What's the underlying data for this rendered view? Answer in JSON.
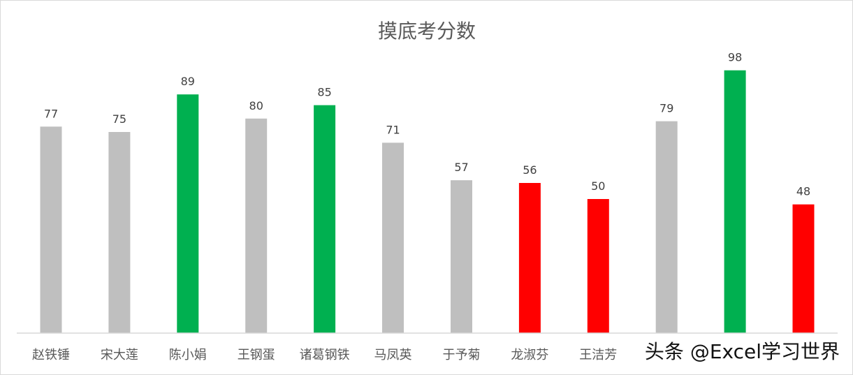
{
  "chart_data": {
    "type": "bar",
    "title": "摸底考分数",
    "categories": [
      "赵铁锤",
      "宋大莲",
      "陈小娟",
      "王钢蛋",
      "诸葛钢铁",
      "马凤英",
      "于予菊",
      "龙淑芬",
      "王洁芳",
      "",
      "",
      ""
    ],
    "values": [
      77,
      75,
      89,
      80,
      85,
      71,
      57,
      56,
      50,
      79,
      98,
      48
    ],
    "colors": [
      "#bfbfbf",
      "#bfbfbf",
      "#00b050",
      "#bfbfbf",
      "#00b050",
      "#bfbfbf",
      "#bfbfbf",
      "#ff0000",
      "#ff0000",
      "#bfbfbf",
      "#00b050",
      "#ff0000"
    ],
    "ylim": [
      0,
      100
    ],
    "grid": false,
    "legend": "none"
  },
  "watermark": "头条 @Excel学习世界"
}
